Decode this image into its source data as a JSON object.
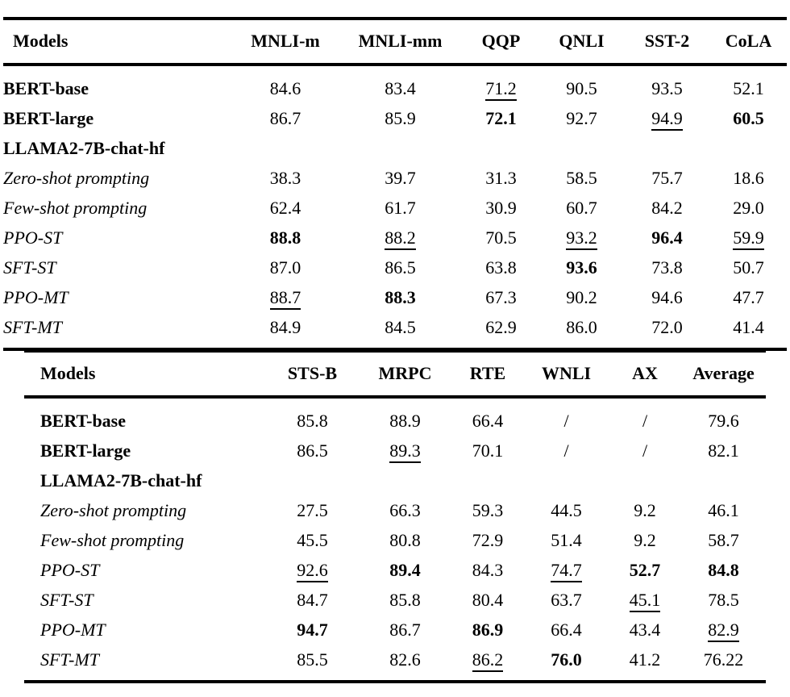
{
  "colors": {
    "background": "#ffffff",
    "text": "#000000",
    "rule": "#000000"
  },
  "tables": [
    {
      "name": "glue-results-table-part1",
      "columns": [
        "Models",
        "MNLI-m",
        "MNLI-mm",
        "QQP",
        "QNLI",
        "SST-2",
        "CoLA"
      ],
      "rows": [
        {
          "model": "BERT-base",
          "style": "bold",
          "cells": [
            {
              "v": "84.6"
            },
            {
              "v": "83.4"
            },
            {
              "v": "71.2",
              "u": true
            },
            {
              "v": "90.5"
            },
            {
              "v": "93.5"
            },
            {
              "v": "52.1"
            }
          ]
        },
        {
          "model": "BERT-large",
          "style": "bold",
          "cells": [
            {
              "v": "86.7"
            },
            {
              "v": "85.9"
            },
            {
              "v": "72.1",
              "b": true
            },
            {
              "v": "92.7"
            },
            {
              "v": "94.9",
              "u": true
            },
            {
              "v": "60.5",
              "b": true
            }
          ]
        },
        {
          "model": "LLAMA2-7B-chat-hf",
          "style": "bold",
          "cells": [
            {
              "v": ""
            },
            {
              "v": ""
            },
            {
              "v": ""
            },
            {
              "v": ""
            },
            {
              "v": ""
            },
            {
              "v": ""
            }
          ]
        },
        {
          "model": "Zero-shot prompting",
          "style": "italic",
          "cells": [
            {
              "v": "38.3"
            },
            {
              "v": "39.7"
            },
            {
              "v": "31.3"
            },
            {
              "v": "58.5"
            },
            {
              "v": "75.7"
            },
            {
              "v": "18.6"
            }
          ]
        },
        {
          "model": "Few-shot prompting",
          "style": "italic",
          "cells": [
            {
              "v": "62.4"
            },
            {
              "v": "61.7"
            },
            {
              "v": "30.9"
            },
            {
              "v": "60.7"
            },
            {
              "v": "84.2"
            },
            {
              "v": "29.0"
            }
          ]
        },
        {
          "model": "PPO-ST",
          "style": "italic",
          "cells": [
            {
              "v": "88.8",
              "b": true
            },
            {
              "v": "88.2",
              "u": true
            },
            {
              "v": "70.5"
            },
            {
              "v": "93.2",
              "u": true
            },
            {
              "v": "96.4",
              "b": true
            },
            {
              "v": "59.9",
              "u": true
            }
          ]
        },
        {
          "model": "SFT-ST",
          "style": "italic",
          "cells": [
            {
              "v": "87.0"
            },
            {
              "v": "86.5"
            },
            {
              "v": "63.8"
            },
            {
              "v": "93.6",
              "b": true
            },
            {
              "v": "73.8"
            },
            {
              "v": "50.7"
            }
          ]
        },
        {
          "model": "PPO-MT",
          "style": "italic",
          "cells": [
            {
              "v": "88.7",
              "u": true
            },
            {
              "v": "88.3",
              "b": true
            },
            {
              "v": "67.3"
            },
            {
              "v": "90.2"
            },
            {
              "v": "94.6"
            },
            {
              "v": "47.7"
            }
          ]
        },
        {
          "model": "SFT-MT",
          "style": "italic",
          "cells": [
            {
              "v": "84.9"
            },
            {
              "v": "84.5"
            },
            {
              "v": "62.9"
            },
            {
              "v": "86.0"
            },
            {
              "v": "72.0"
            },
            {
              "v": "41.4"
            }
          ]
        }
      ]
    },
    {
      "name": "glue-results-table-part2",
      "columns": [
        "Models",
        "STS-B",
        "MRPC",
        "RTE",
        "WNLI",
        "AX",
        "Average"
      ],
      "rows": [
        {
          "model": "BERT-base",
          "style": "bold",
          "cells": [
            {
              "v": "85.8"
            },
            {
              "v": "88.9"
            },
            {
              "v": "66.4"
            },
            {
              "v": "/"
            },
            {
              "v": "/"
            },
            {
              "v": "79.6"
            }
          ]
        },
        {
          "model": "BERT-large",
          "style": "bold",
          "cells": [
            {
              "v": "86.5"
            },
            {
              "v": "89.3",
              "u": true
            },
            {
              "v": "70.1"
            },
            {
              "v": "/"
            },
            {
              "v": "/"
            },
            {
              "v": "82.1"
            }
          ]
        },
        {
          "model": "LLAMA2-7B-chat-hf",
          "style": "bold",
          "cells": [
            {
              "v": ""
            },
            {
              "v": ""
            },
            {
              "v": ""
            },
            {
              "v": ""
            },
            {
              "v": ""
            },
            {
              "v": ""
            }
          ]
        },
        {
          "model": "Zero-shot prompting",
          "style": "italic",
          "cells": [
            {
              "v": "27.5"
            },
            {
              "v": "66.3"
            },
            {
              "v": "59.3"
            },
            {
              "v": "44.5"
            },
            {
              "v": "9.2"
            },
            {
              "v": "46.1"
            }
          ]
        },
        {
          "model": "Few-shot prompting",
          "style": "italic",
          "cells": [
            {
              "v": "45.5"
            },
            {
              "v": "80.8"
            },
            {
              "v": "72.9"
            },
            {
              "v": "51.4"
            },
            {
              "v": "9.2"
            },
            {
              "v": "58.7"
            }
          ]
        },
        {
          "model": "PPO-ST",
          "style": "italic",
          "cells": [
            {
              "v": "92.6",
              "u": true
            },
            {
              "v": "89.4",
              "b": true
            },
            {
              "v": "84.3"
            },
            {
              "v": "74.7",
              "u": true
            },
            {
              "v": "52.7",
              "b": true
            },
            {
              "v": "84.8",
              "b": true
            }
          ]
        },
        {
          "model": "SFT-ST",
          "style": "italic",
          "cells": [
            {
              "v": "84.7"
            },
            {
              "v": "85.8"
            },
            {
              "v": "80.4"
            },
            {
              "v": "63.7"
            },
            {
              "v": "45.1",
              "u": true
            },
            {
              "v": "78.5"
            }
          ]
        },
        {
          "model": "PPO-MT",
          "style": "italic",
          "cells": [
            {
              "v": "94.7",
              "b": true
            },
            {
              "v": "86.7"
            },
            {
              "v": "86.9",
              "b": true
            },
            {
              "v": "66.4"
            },
            {
              "v": "43.4"
            },
            {
              "v": "82.9",
              "u": true
            }
          ]
        },
        {
          "model": "SFT-MT",
          "style": "italic",
          "cells": [
            {
              "v": "85.5"
            },
            {
              "v": "82.6"
            },
            {
              "v": "86.2",
              "u": true
            },
            {
              "v": "76.0",
              "b": true
            },
            {
              "v": "41.2"
            },
            {
              "v": "76.22"
            }
          ]
        }
      ]
    }
  ]
}
